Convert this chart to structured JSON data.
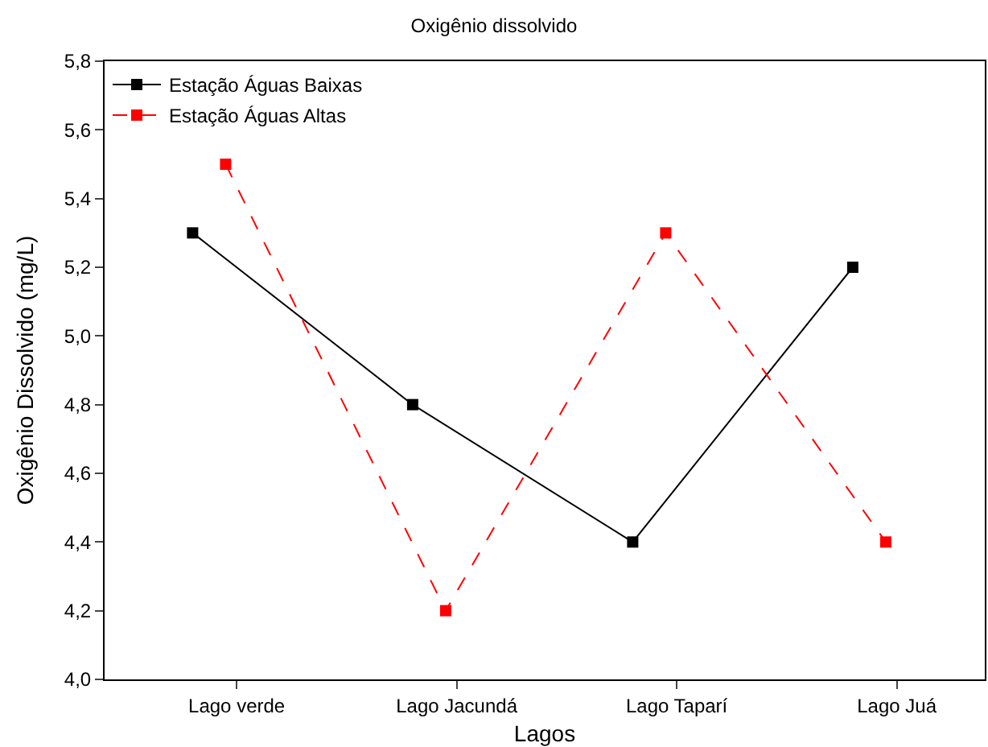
{
  "chart_data": {
    "type": "line",
    "title": "Oxigênio dissolvido",
    "xlabel": "Lagos",
    "ylabel": "Oxigênio Dissolvido (mg/L)",
    "categories": [
      "Lago verde",
      "Lago Jacundá",
      "Lago Taparí",
      "Lago Juá"
    ],
    "series": [
      {
        "name": "Estação Águas Baixas",
        "color": "#000000",
        "line_style": "solid",
        "values": [
          5.3,
          4.8,
          4.4,
          5.2
        ]
      },
      {
        "name": "Estação Águas Altas",
        "color": "#ff0000",
        "line_style": "dashed",
        "values": [
          5.5,
          4.2,
          5.3,
          4.4
        ]
      }
    ],
    "ylim": [
      4.0,
      5.8
    ],
    "yticks": [
      {
        "value": 4.0,
        "label": "4,0"
      },
      {
        "value": 4.2,
        "label": "4,2"
      },
      {
        "value": 4.4,
        "label": "4,4"
      },
      {
        "value": 4.6,
        "label": "4,6"
      },
      {
        "value": 4.8,
        "label": "4,8"
      },
      {
        "value": 5.0,
        "label": "5,0"
      },
      {
        "value": 5.2,
        "label": "5,2"
      },
      {
        "value": 5.4,
        "label": "5,4"
      },
      {
        "value": 5.6,
        "label": "5,6"
      },
      {
        "value": 5.8,
        "label": "5,8"
      }
    ],
    "marker": "square",
    "legend": "top left"
  }
}
